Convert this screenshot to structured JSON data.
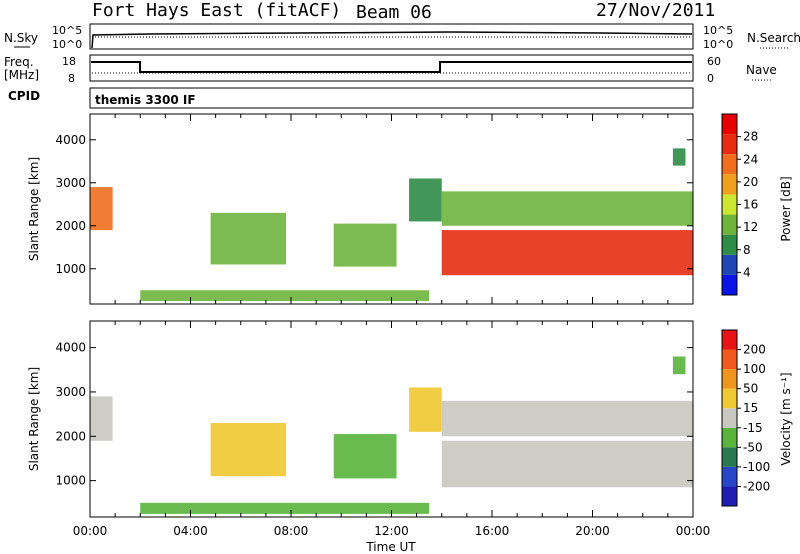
{
  "header": {
    "station": "Fort Hays East (fitACF)",
    "beam": "Beam 06",
    "date": "27/Nov/2011"
  },
  "status_panels": {
    "nsky_label": "N.Sky",
    "nsearch_label": "N.Search",
    "noise_ticks": [
      "10^5",
      "10^0"
    ],
    "freq_label_1": "Freq.",
    "freq_label_2": "[MHz]",
    "freq_ticks": [
      "18",
      "8"
    ],
    "nave_label": "Nave",
    "nave_ticks": [
      "60",
      "0"
    ],
    "cpid_label": "CPID",
    "cpid_value": "themis 3300 IF"
  },
  "colors": {
    "power_scale": [
      "#0a14e6",
      "#1e46b4",
      "#2d8c46",
      "#6eb43c",
      "#cde632",
      "#f0a01e",
      "#f06e1e",
      "#e62d14",
      "#e60000"
    ],
    "velocity_scale": [
      "#1e1eb4",
      "#2846c8",
      "#287850",
      "#5ab43c",
      "#c8c8c0",
      "#f0c832",
      "#f0961e",
      "#f05a1e",
      "#e61414"
    ]
  },
  "chart_data": [
    {
      "type": "heatmap",
      "name": "power",
      "xlabel": "Time UT",
      "ylabel": "Slant Range [km]",
      "xlim": [
        0,
        24
      ],
      "ylim": [
        180,
        4600
      ],
      "x_ticks": [
        "00:00",
        "04:00",
        "08:00",
        "12:00",
        "16:00",
        "20:00",
        "00:00"
      ],
      "y_ticks": [
        "1000",
        "2000",
        "3000",
        "4000"
      ],
      "colorbar_label": "Power [dB]",
      "colorbar_ticks": [
        "4",
        "8",
        "12",
        "16",
        "20",
        "24",
        "28"
      ],
      "colorbar_range": [
        0,
        32
      ],
      "regions": [
        {
          "t0": 0.0,
          "t1": 0.9,
          "r0": 1900,
          "r1": 2900,
          "value": 22
        },
        {
          "t0": 4.8,
          "t1": 7.8,
          "r0": 1100,
          "r1": 2300,
          "value": 12
        },
        {
          "t0": 9.7,
          "t1": 12.2,
          "r0": 1050,
          "r1": 2050,
          "value": 13
        },
        {
          "t0": 12.7,
          "t1": 14.0,
          "r0": 2100,
          "r1": 3100,
          "value": 10
        },
        {
          "t0": 14.0,
          "t1": 24.0,
          "r0": 850,
          "r1": 1900,
          "value": 26
        },
        {
          "t0": 14.0,
          "t1": 24.0,
          "r0": 2000,
          "r1": 2800,
          "value": 12
        },
        {
          "t0": 2.0,
          "t1": 13.5,
          "r0": 250,
          "r1": 500,
          "value": 14
        },
        {
          "t0": 23.2,
          "t1": 23.7,
          "r0": 3400,
          "r1": 3800,
          "value": 8
        }
      ]
    },
    {
      "type": "heatmap",
      "name": "velocity",
      "xlabel": "Time UT",
      "ylabel": "Slant Range [km]",
      "xlim": [
        0,
        24
      ],
      "ylim": [
        180,
        4600
      ],
      "x_ticks": [
        "00:00",
        "04:00",
        "08:00",
        "12:00",
        "16:00",
        "20:00",
        "00:00"
      ],
      "y_ticks": [
        "1000",
        "2000",
        "3000",
        "4000"
      ],
      "colorbar_label": "Velocity [m s⁻¹]",
      "colorbar_ticks": [
        "200",
        "100",
        "50",
        "15",
        "-15",
        "-50",
        "-100",
        "-200"
      ],
      "colorbar_range": [
        -250,
        250
      ],
      "regions": [
        {
          "t0": 0.0,
          "t1": 0.9,
          "r0": 1900,
          "r1": 2900,
          "value": 0
        },
        {
          "t0": 4.8,
          "t1": 7.8,
          "r0": 1100,
          "r1": 2300,
          "value": 70
        },
        {
          "t0": 9.7,
          "t1": 12.2,
          "r0": 1050,
          "r1": 2050,
          "value": -60
        },
        {
          "t0": 12.7,
          "t1": 14.0,
          "r0": 2100,
          "r1": 3100,
          "value": 40
        },
        {
          "t0": 14.0,
          "t1": 24.0,
          "r0": 850,
          "r1": 1900,
          "value": 0
        },
        {
          "t0": 14.0,
          "t1": 24.0,
          "r0": 2000,
          "r1": 2800,
          "value": 0
        },
        {
          "t0": 2.0,
          "t1": 13.5,
          "r0": 250,
          "r1": 500,
          "value": -40
        },
        {
          "t0": 23.2,
          "t1": 23.7,
          "r0": 3400,
          "r1": 3800,
          "value": -60
        }
      ]
    }
  ]
}
